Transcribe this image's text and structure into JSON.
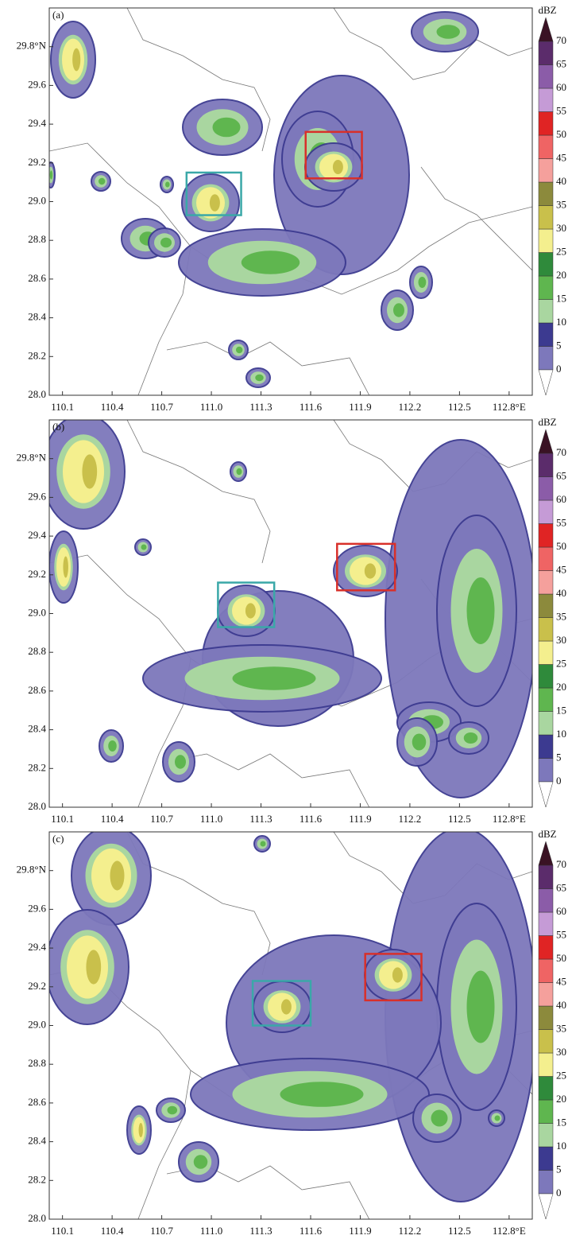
{
  "chart_data": {
    "type": "radar-map",
    "xlim": [
      110.02,
      112.94
    ],
    "ylim": [
      28.0,
      30.0
    ],
    "xticks": [
      110.1,
      110.4,
      110.7,
      {
        "value": 111.0,
        "label": "111.0"
      },
      111.3,
      111.6,
      111.9,
      112.2,
      112.5,
      {
        "value": 112.8,
        "label": "112.8°E"
      }
    ],
    "yticks": [
      {
        "value": 28.0,
        "label": "28.0"
      },
      28.2,
      28.4,
      28.6,
      28.8,
      {
        "value": 29.0,
        "label": "29.0"
      },
      29.2,
      29.4,
      29.6,
      {
        "value": 29.8,
        "label": "29.8°N"
      }
    ],
    "colorbar": {
      "label": "dBZ",
      "levels": [
        0,
        5,
        10,
        15,
        20,
        25,
        30,
        35,
        40,
        45,
        50,
        55,
        60,
        65,
        70
      ],
      "colors": [
        "#7d78bb",
        "#3c3a90",
        "#a9d6a0",
        "#5fb64f",
        "#2f8a3b",
        "#f4ef8e",
        "#c9c04b",
        "#8c8a3c",
        "#f5a09c",
        "#ef6464",
        "#e02424",
        "#c59bd6",
        "#8b5ca8",
        "#5b2c6b"
      ],
      "over_color": "#3a1224",
      "under_color": "#ffffff"
    },
    "panels": [
      {
        "label": "(a)",
        "boxes": [
          {
            "color": "#3aa8a8",
            "lon": [
              110.85,
              111.18
            ],
            "lat": [
              28.93,
              29.15
            ]
          },
          {
            "color": "#d8302a",
            "lon": [
              111.57,
              111.91
            ],
            "lat": [
              29.12,
              29.36
            ]
          }
        ]
      },
      {
        "label": "(b)",
        "boxes": [
          {
            "color": "#3aa8a8",
            "lon": [
              111.04,
              111.38
            ],
            "lat": [
              28.93,
              29.16
            ]
          },
          {
            "color": "#d8302a",
            "lon": [
              111.76,
              112.11
            ],
            "lat": [
              29.12,
              29.36
            ]
          }
        ]
      },
      {
        "label": "(c)",
        "boxes": [
          {
            "color": "#3aa8a8",
            "lon": [
              111.25,
              111.6
            ],
            "lat": [
              29.0,
              29.23
            ]
          },
          {
            "color": "#d8302a",
            "lon": [
              111.93,
              112.27
            ],
            "lat": [
              29.13,
              29.37
            ]
          }
        ]
      }
    ]
  }
}
